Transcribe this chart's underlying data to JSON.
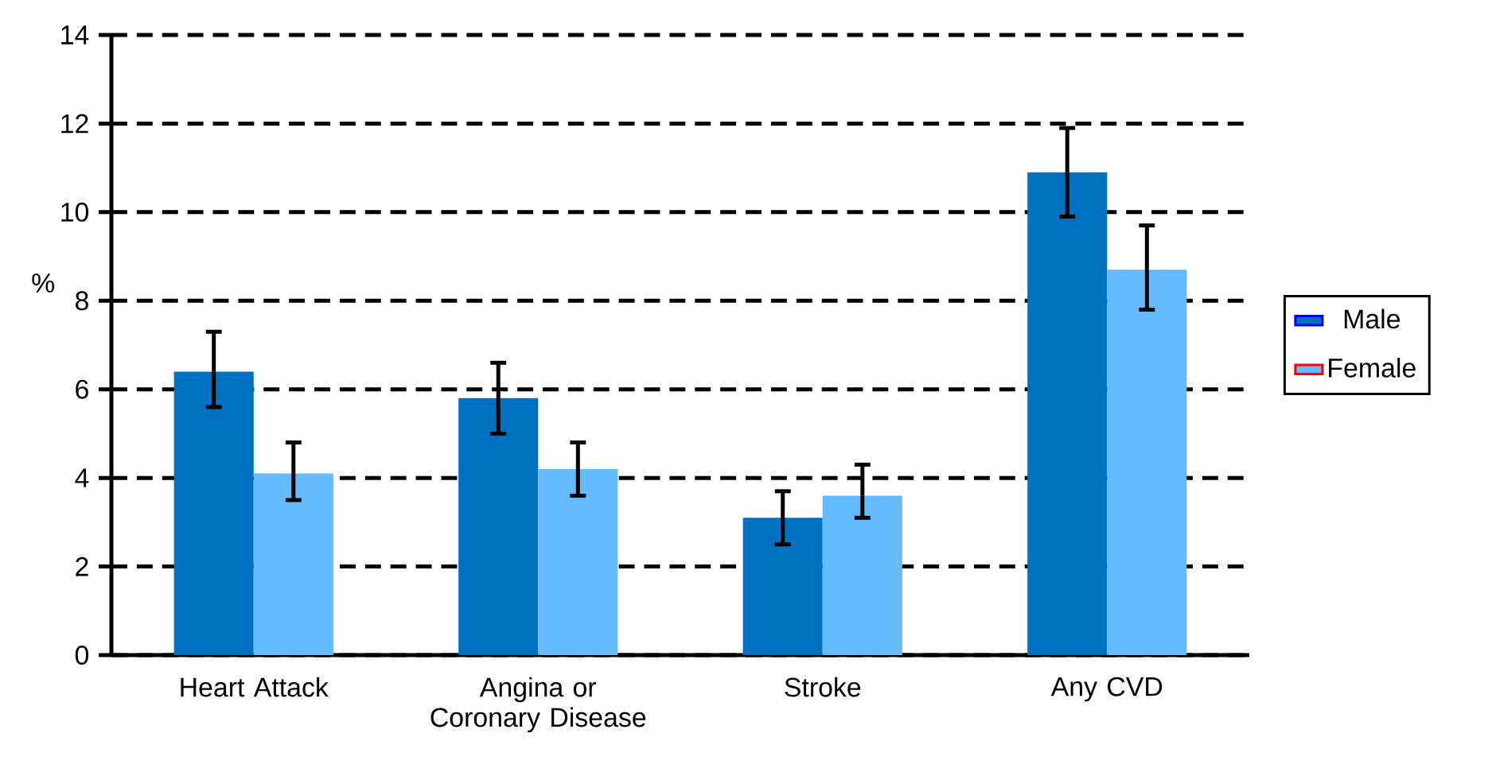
{
  "chart_data": {
    "type": "bar",
    "ylabel": "%",
    "categories": [
      "Heart Attack",
      "Angina or Coronary Disease",
      "Stroke",
      "Any CVD"
    ],
    "series": [
      {
        "name": "Male",
        "color": "#0070c0",
        "values": [
          6.4,
          5.8,
          3.1,
          10.9
        ],
        "errors": [
          [
            5.6,
            7.3
          ],
          [
            5.0,
            6.6
          ],
          [
            2.5,
            3.7
          ],
          [
            9.9,
            11.9
          ]
        ]
      },
      {
        "name": "Female",
        "color": "#66bbff",
        "values": [
          4.1,
          4.2,
          3.6,
          8.7
        ],
        "errors": [
          [
            3.5,
            4.8
          ],
          [
            3.6,
            4.8
          ],
          [
            3.1,
            4.3
          ],
          [
            7.8,
            9.7
          ]
        ]
      }
    ],
    "ylim": [
      0,
      14
    ],
    "yticks": [
      0,
      2,
      4,
      6,
      8,
      10,
      12,
      14
    ],
    "grid": "y",
    "legend": "right"
  }
}
